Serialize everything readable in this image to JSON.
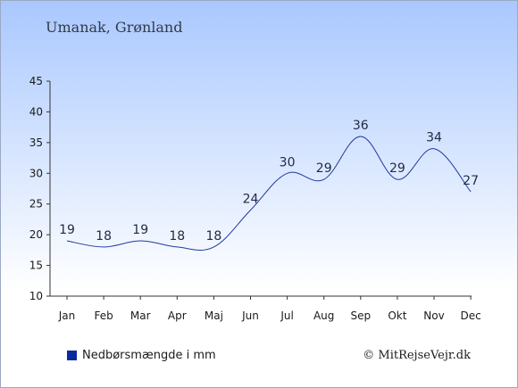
{
  "chart_title": "Umanak, Grønland",
  "legend_label": "Nedbørsmængde i mm",
  "copyright": "© MitRejseVejr.dk",
  "colors": {
    "line": "#1f3aa0",
    "axis": "#333333",
    "swatch": "#0b2a9e"
  },
  "chart_data": {
    "type": "line",
    "title": "Umanak, Grønland",
    "xlabel": "",
    "ylabel": "",
    "categories": [
      "Jan",
      "Feb",
      "Mar",
      "Apr",
      "Maj",
      "Jun",
      "Jul",
      "Aug",
      "Sep",
      "Okt",
      "Nov",
      "Dec"
    ],
    "series": [
      {
        "name": "Nedbørsmængde i mm",
        "values": [
          19,
          18,
          19,
          18,
          18,
          24,
          30,
          29,
          36,
          29,
          34,
          27
        ]
      }
    ],
    "ylim": [
      10,
      45
    ],
    "yticks": [
      10,
      15,
      20,
      25,
      30,
      35,
      40,
      45
    ],
    "grid": false,
    "legend": "bottom-left"
  }
}
